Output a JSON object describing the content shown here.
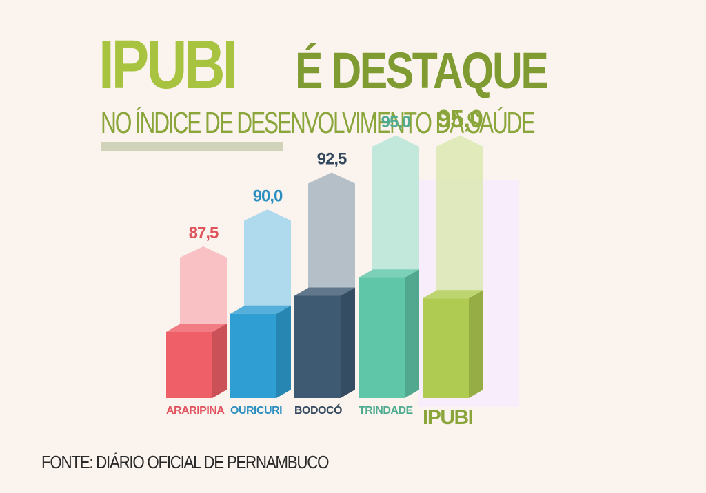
{
  "header": {
    "title_main": "IPUBI",
    "title_rest": "É DESTAQUE",
    "subtitle": "NO ÍNDICE DE DESENVOLVIMENTO DA SAÚDE"
  },
  "source": "FONTE: DIÁRIO OFICIAL DE PERNAMBUCO",
  "colors": {
    "background": "#fbf3ee",
    "title_light": "#a7c33f",
    "title_dark": "#7f9b32",
    "subtitle": "#8aa53a",
    "underline": "#cfd3b9",
    "highlight_panel": "#f8eefb"
  },
  "chart_data": {
    "type": "bar",
    "categories": [
      "ARARIPINA",
      "OURICURI",
      "BODOCÓ",
      "TRINDADE",
      "IPUBI"
    ],
    "values": [
      87.5,
      90.0,
      92.5,
      95.0,
      95.0
    ],
    "value_labels": [
      "87,5",
      "90,0",
      "92,5",
      "95,0",
      "95,0"
    ],
    "highlighted": "IPUBI",
    "colors": [
      "#ef5f68",
      "#2f9ed2",
      "#3e5a73",
      "#5fc6a8",
      "#b0cb52"
    ],
    "label_colors": [
      "#e0525c",
      "#2a8fc0",
      "#34495e",
      "#4fab90",
      "#8aa53a"
    ],
    "title": "",
    "xlabel": "",
    "ylabel": "",
    "grid": false
  }
}
